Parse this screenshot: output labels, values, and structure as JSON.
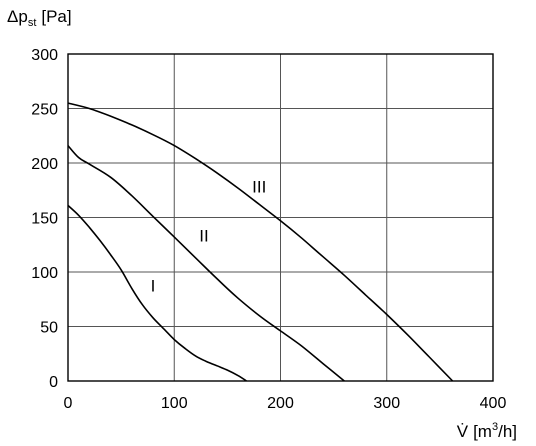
{
  "chart_data": {
    "type": "line",
    "xlabel_main": "V̇",
    "xlabel_unit_open": "[m",
    "xlabel_unit_sup": "3",
    "xlabel_unit_close": "/h]",
    "ylabel_main": "Δp",
    "ylabel_sub": "st",
    "ylabel_unit": "[Pa]",
    "xlim": [
      0,
      400
    ],
    "ylim": [
      0,
      300
    ],
    "xticks": [
      0,
      100,
      200,
      300,
      400
    ],
    "yticks": [
      0,
      50,
      100,
      150,
      200,
      250,
      300
    ],
    "grid": true,
    "series": [
      {
        "name": "I",
        "x": [
          0,
          10,
          20,
          30,
          40,
          50,
          60,
          70,
          80,
          90,
          100,
          110,
          120,
          130,
          140,
          150,
          160,
          168
        ],
        "y": [
          161,
          152,
          141,
          129,
          116,
          102,
          85,
          70,
          58,
          48,
          38,
          30,
          23,
          18,
          14,
          10,
          5,
          0
        ]
      },
      {
        "name": "II",
        "x": [
          0,
          10,
          20,
          40,
          60,
          80,
          100,
          120,
          140,
          160,
          180,
          200,
          220,
          240,
          260
        ],
        "y": [
          216,
          205,
          199,
          187,
          170,
          151,
          132,
          113,
          94,
          76,
          60,
          46,
          32,
          16,
          0
        ]
      },
      {
        "name": "III",
        "x": [
          0,
          20,
          40,
          60,
          80,
          100,
          120,
          140,
          160,
          180,
          200,
          220,
          240,
          260,
          280,
          300,
          320,
          340,
          362
        ],
        "y": [
          255,
          250,
          243,
          235,
          226,
          216,
          204,
          191,
          177,
          162,
          147,
          131,
          114,
          97,
          79,
          61,
          42,
          22,
          0
        ]
      }
    ],
    "curve_labels": [
      {
        "text": "I",
        "x": 80,
        "y": 82
      },
      {
        "text": "II",
        "x": 128,
        "y": 128
      },
      {
        "text": "III",
        "x": 180,
        "y": 173
      }
    ]
  }
}
